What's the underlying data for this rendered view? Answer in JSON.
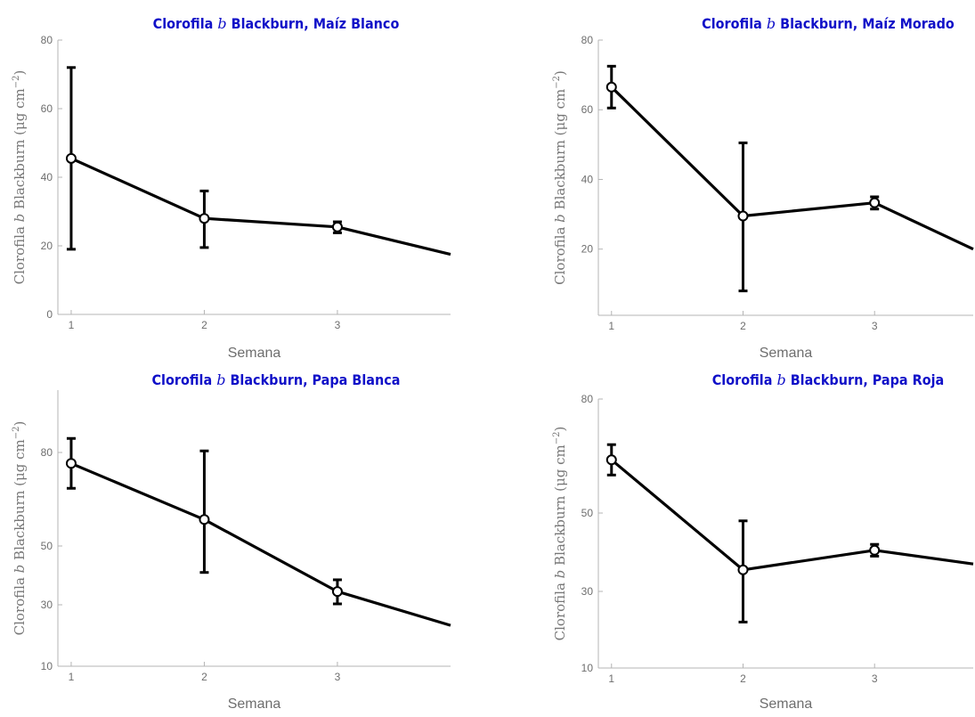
{
  "chart_data": [
    {
      "type": "line",
      "title": "Clorofila b Blackburn, Maíz Blanco",
      "title_parts": {
        "pre": "Clorofila ",
        "italic": "b",
        "post": " Blackburn, Maíz Blanco"
      },
      "xlabel": "Semana",
      "ylabel": "Clorofila b Blackburn (μg cm⁻²)",
      "ylabel_parts": {
        "pre": "Clorofila ",
        "italic": "b",
        "post": " Blackburn (μg cm",
        "sup": "−2",
        "end": ")"
      },
      "x": [
        1,
        2,
        3,
        3.85
      ],
      "y": [
        45.5,
        28,
        25.5,
        17.5
      ],
      "err_low": [
        19,
        19.5,
        23.8,
        null
      ],
      "err_high": [
        72,
        36,
        27,
        null
      ],
      "xticks": [
        1,
        2,
        3
      ],
      "yticks": [
        0,
        20,
        40,
        60,
        80
      ],
      "xlim": [
        0.9,
        3.85
      ],
      "ylim": [
        0,
        80
      ],
      "grid": false,
      "line_color": "#000000"
    },
    {
      "type": "line",
      "title": "Clorofila b Blackburn, Maíz Morado",
      "title_parts": {
        "pre": "Clorofila ",
        "italic": "b",
        "post": " Blackburn, Maíz Morado"
      },
      "xlabel": "Semana",
      "ylabel": "Clorofila b Blackburn (μg cm⁻²)",
      "ylabel_parts": {
        "pre": "Clorofila ",
        "italic": "b",
        "post": " Blackburn (μg cm",
        "sup": "−2",
        "end": ")"
      },
      "x": [
        1,
        2,
        3,
        3.75
      ],
      "y": [
        66.5,
        29.5,
        33.3,
        20
      ],
      "err_low": [
        60.5,
        8,
        31.5,
        null
      ],
      "err_high": [
        72.5,
        50.5,
        35,
        null
      ],
      "xticks": [
        1,
        2,
        3
      ],
      "yticks": [
        20,
        40,
        60,
        80
      ],
      "xlim": [
        0.9,
        3.75
      ],
      "ylim": [
        1,
        80
      ],
      "grid": false,
      "line_color": "#000000"
    },
    {
      "type": "line",
      "title": "Clorofila b Blackburn, Papa Blanca",
      "title_parts": {
        "pre": "Clorofila ",
        "italic": "b",
        "post": " Blackburn, Papa Blanca"
      },
      "xlabel": "Semana",
      "ylabel": "Clorofila b Blackburn (μg cm⁻²)",
      "ylabel_parts": {
        "pre": "Clorofila ",
        "italic": "b",
        "post": " Blackburn (μg cm",
        "sup": "−2",
        "end": ")"
      },
      "x": [
        1,
        2,
        3,
        3.85
      ],
      "y": [
        76.5,
        58.5,
        34.5,
        23.3
      ],
      "err_low": [
        68.5,
        41,
        30.3,
        null
      ],
      "err_high": [
        84.5,
        80.5,
        38.5,
        null
      ],
      "xticks": [
        1,
        2,
        3
      ],
      "yticks": [
        10,
        30,
        50,
        80
      ],
      "xlim": [
        0.9,
        3.85
      ],
      "ylim": [
        10,
        100
      ],
      "grid": false,
      "line_color": "#000000"
    },
    {
      "type": "line",
      "title": "Clorofila b Blackburn, Papa Roja",
      "title_parts": {
        "pre": "Clorofila ",
        "italic": "b",
        "post": " Blackburn, Papa Roja"
      },
      "xlabel": "Semana",
      "ylabel": "Clorofila b Blackburn (μg cm⁻²)",
      "ylabel_parts": {
        "pre": "Clorofila ",
        "italic": "b",
        "post": " Blackburn (μg cm",
        "sup": "−2",
        "end": ")"
      },
      "x": [
        1,
        2,
        3,
        3.75
      ],
      "y": [
        64,
        35.5,
        40.5,
        37
      ],
      "err_low": [
        60,
        22,
        39,
        null
      ],
      "err_high": [
        68,
        48,
        42,
        null
      ],
      "xticks": [
        1,
        2,
        3
      ],
      "yticks": [
        10,
        30,
        50,
        80
      ],
      "xlim": [
        0.9,
        3.75
      ],
      "ylim": [
        10,
        80
      ],
      "grid": false,
      "line_color": "#000000"
    }
  ]
}
